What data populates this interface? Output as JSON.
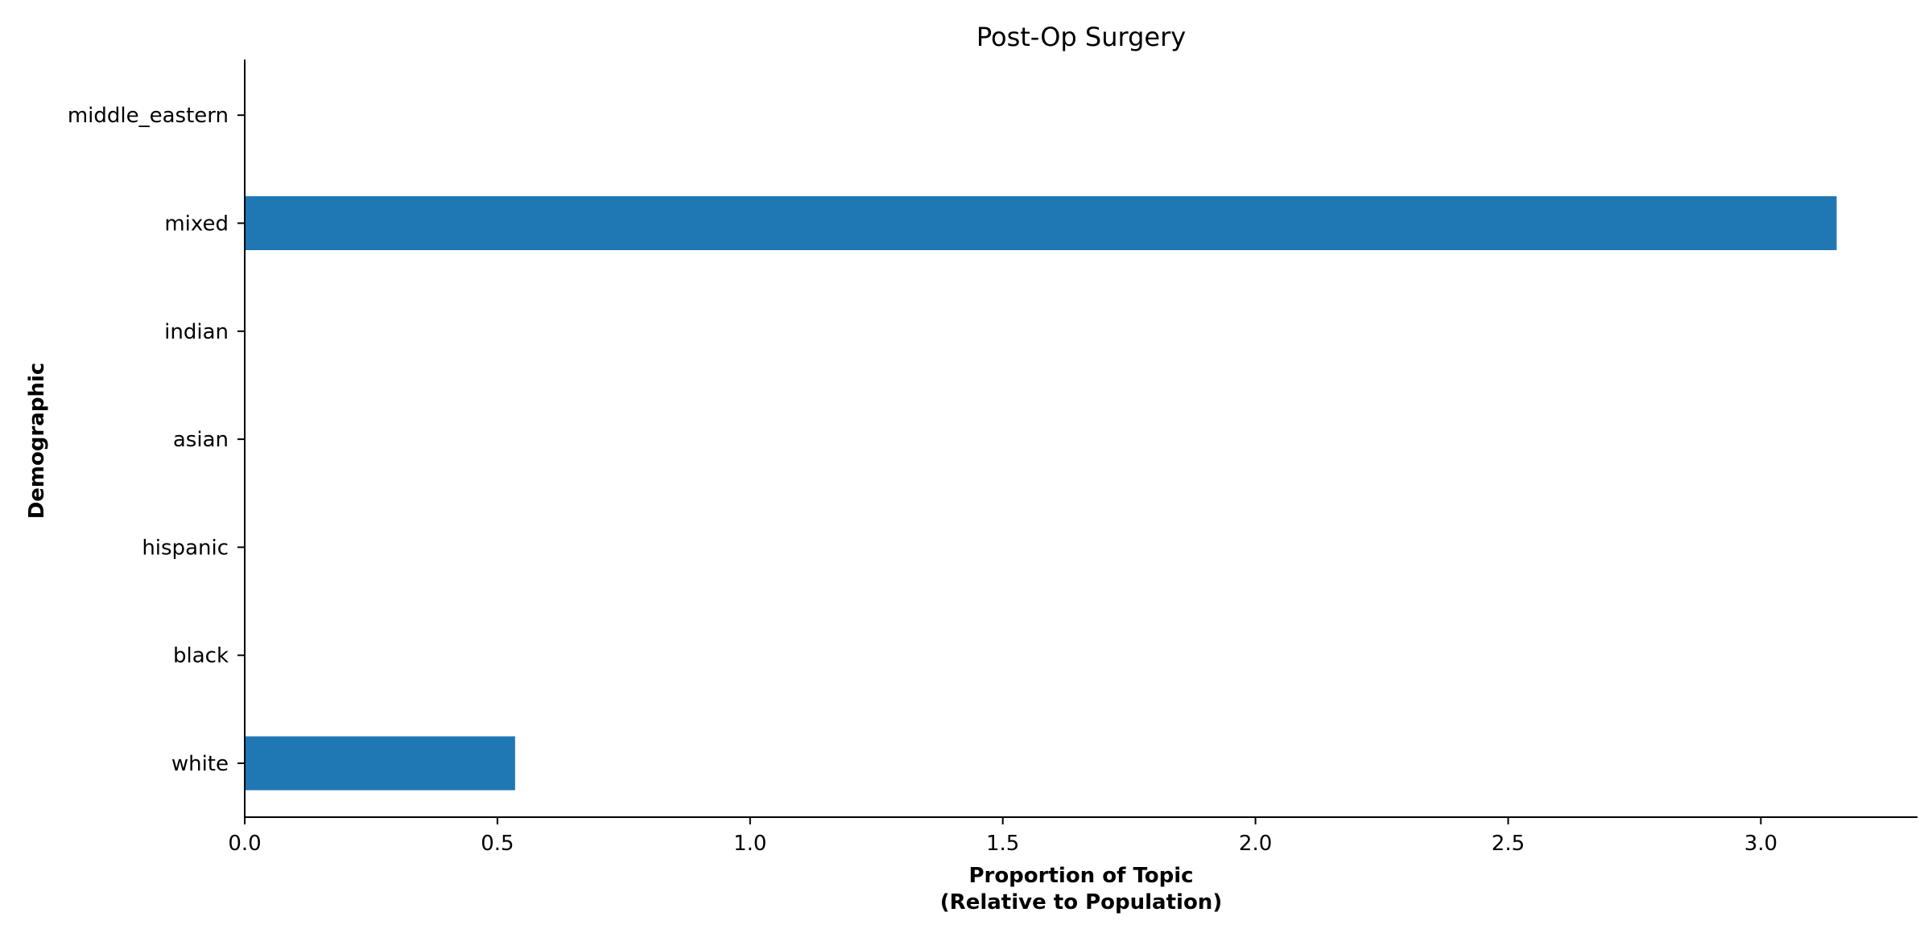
{
  "chart_data": {
    "type": "bar",
    "orientation": "horizontal",
    "title": "Post-Op Surgery",
    "xlabel_lines": [
      "Proportion of Topic",
      "(Relative to Population)"
    ],
    "ylabel": "Demographic",
    "categories": [
      "white",
      "black",
      "hispanic",
      "asian",
      "indian",
      "mixed",
      "middle_eastern"
    ],
    "values": [
      0.535,
      0,
      0,
      0,
      0,
      3.15,
      0
    ],
    "xlim": [
      0,
      3.31
    ],
    "xticks": [
      "0.0",
      "0.5",
      "1.0",
      "1.5",
      "2.0",
      "2.5",
      "3.0"
    ],
    "bar_color": "#1f77b4",
    "axis_color": "#000000",
    "grid": false
  }
}
